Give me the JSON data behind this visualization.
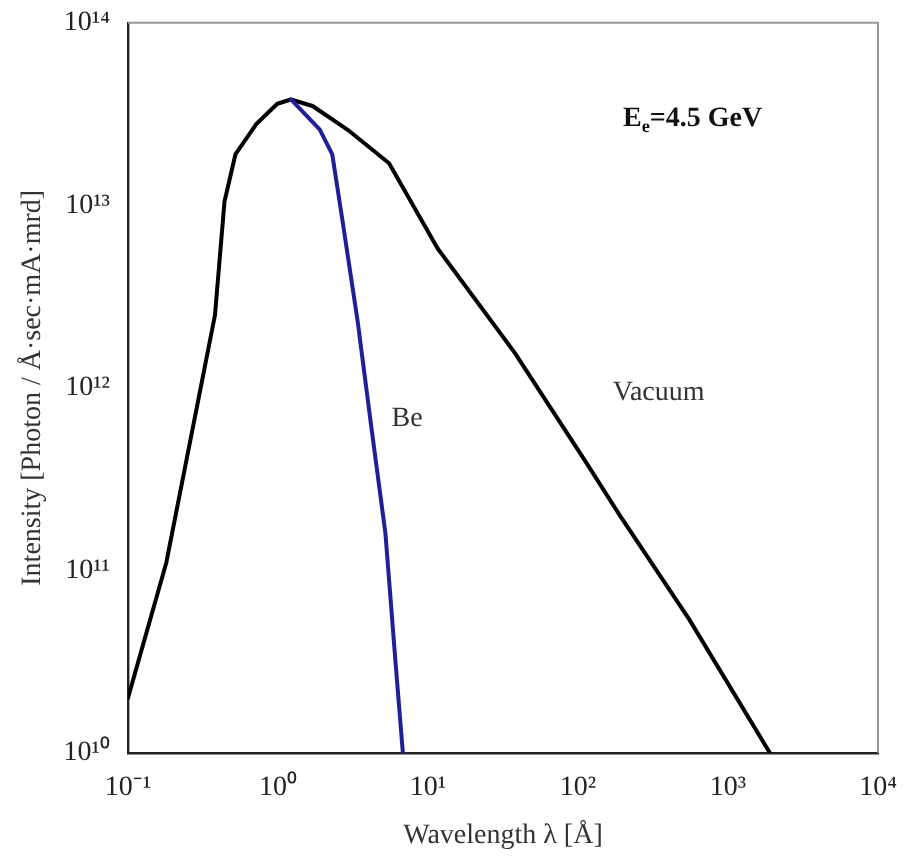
{
  "chart_data": {
    "type": "line",
    "xlabel": "Wavelength λ [Å]",
    "ylabel": "Intensity [Photon / Å·sec·mA·mrd]",
    "annotations": [
      "E$_{e}$=4.5 GeV"
    ],
    "log": "xy",
    "grid": false,
    "legend": false,
    "marker": "none",
    "line_style": "solid",
    "xlim": [
      0.1,
      10000
    ],
    "xticks": [
      {
        "value": 0.1,
        "label": "10⁻¹"
      },
      {
        "value": 1,
        "label": "10⁰"
      },
      {
        "value": 10,
        "label": "10¹"
      },
      {
        "value": 100,
        "label": "10²"
      },
      {
        "value": 1000,
        "label": "10³"
      },
      {
        "value": 10000,
        "label": "10⁴"
      }
    ],
    "ylim": [
      10000000000.0,
      100000000000000.0
    ],
    "yticks": [
      {
        "value": 10000000000.0,
        "label": "10¹⁰"
      },
      {
        "value": 100000000000.0,
        "label": "10¹¹"
      },
      {
        "value": 1000000000000.0,
        "label": "10¹²"
      },
      {
        "value": 10000000000000.0,
        "label": "10¹³"
      },
      {
        "value": 100000000000000.0,
        "label": "10¹⁴"
      }
    ],
    "series": [
      {
        "name": "Vacuum",
        "color": "#000000",
        "x": [
          0.1,
          0.18,
          0.27,
          0.38,
          0.44,
          0.52,
          0.72,
          0.99,
          1.22,
          1.7,
          2.9,
          5.5,
          11.6,
          38,
          111,
          190,
          550,
          1900
        ],
        "values": [
          20000000000.0,
          110000000000.0,
          600000000000.0,
          2500000000000.0,
          10500000000000.0,
          19000000000000.0,
          28000000000000.0,
          36000000000000.0,
          38000000000000.0,
          35000000000000.0,
          26000000000000.0,
          17000000000000.0,
          5800000000000.0,
          1550000000000.0,
          400000000000.0,
          200000000000.0,
          54000000000.0,
          10000000000.0
        ]
      },
      {
        "name": "Be",
        "color": "#1f1f9a",
        "x": [
          1.22,
          1.9,
          2.3,
          2.7,
          3.4,
          4.2,
          5.2,
          6.1,
          6.8
        ],
        "values": [
          38000000000000.0,
          26000000000000.0,
          19000000000000.0,
          8100000000000.0,
          2300000000000.0,
          600000000000.0,
          160000000000.0,
          30000000000.0,
          10000000000.0
        ]
      }
    ]
  }
}
